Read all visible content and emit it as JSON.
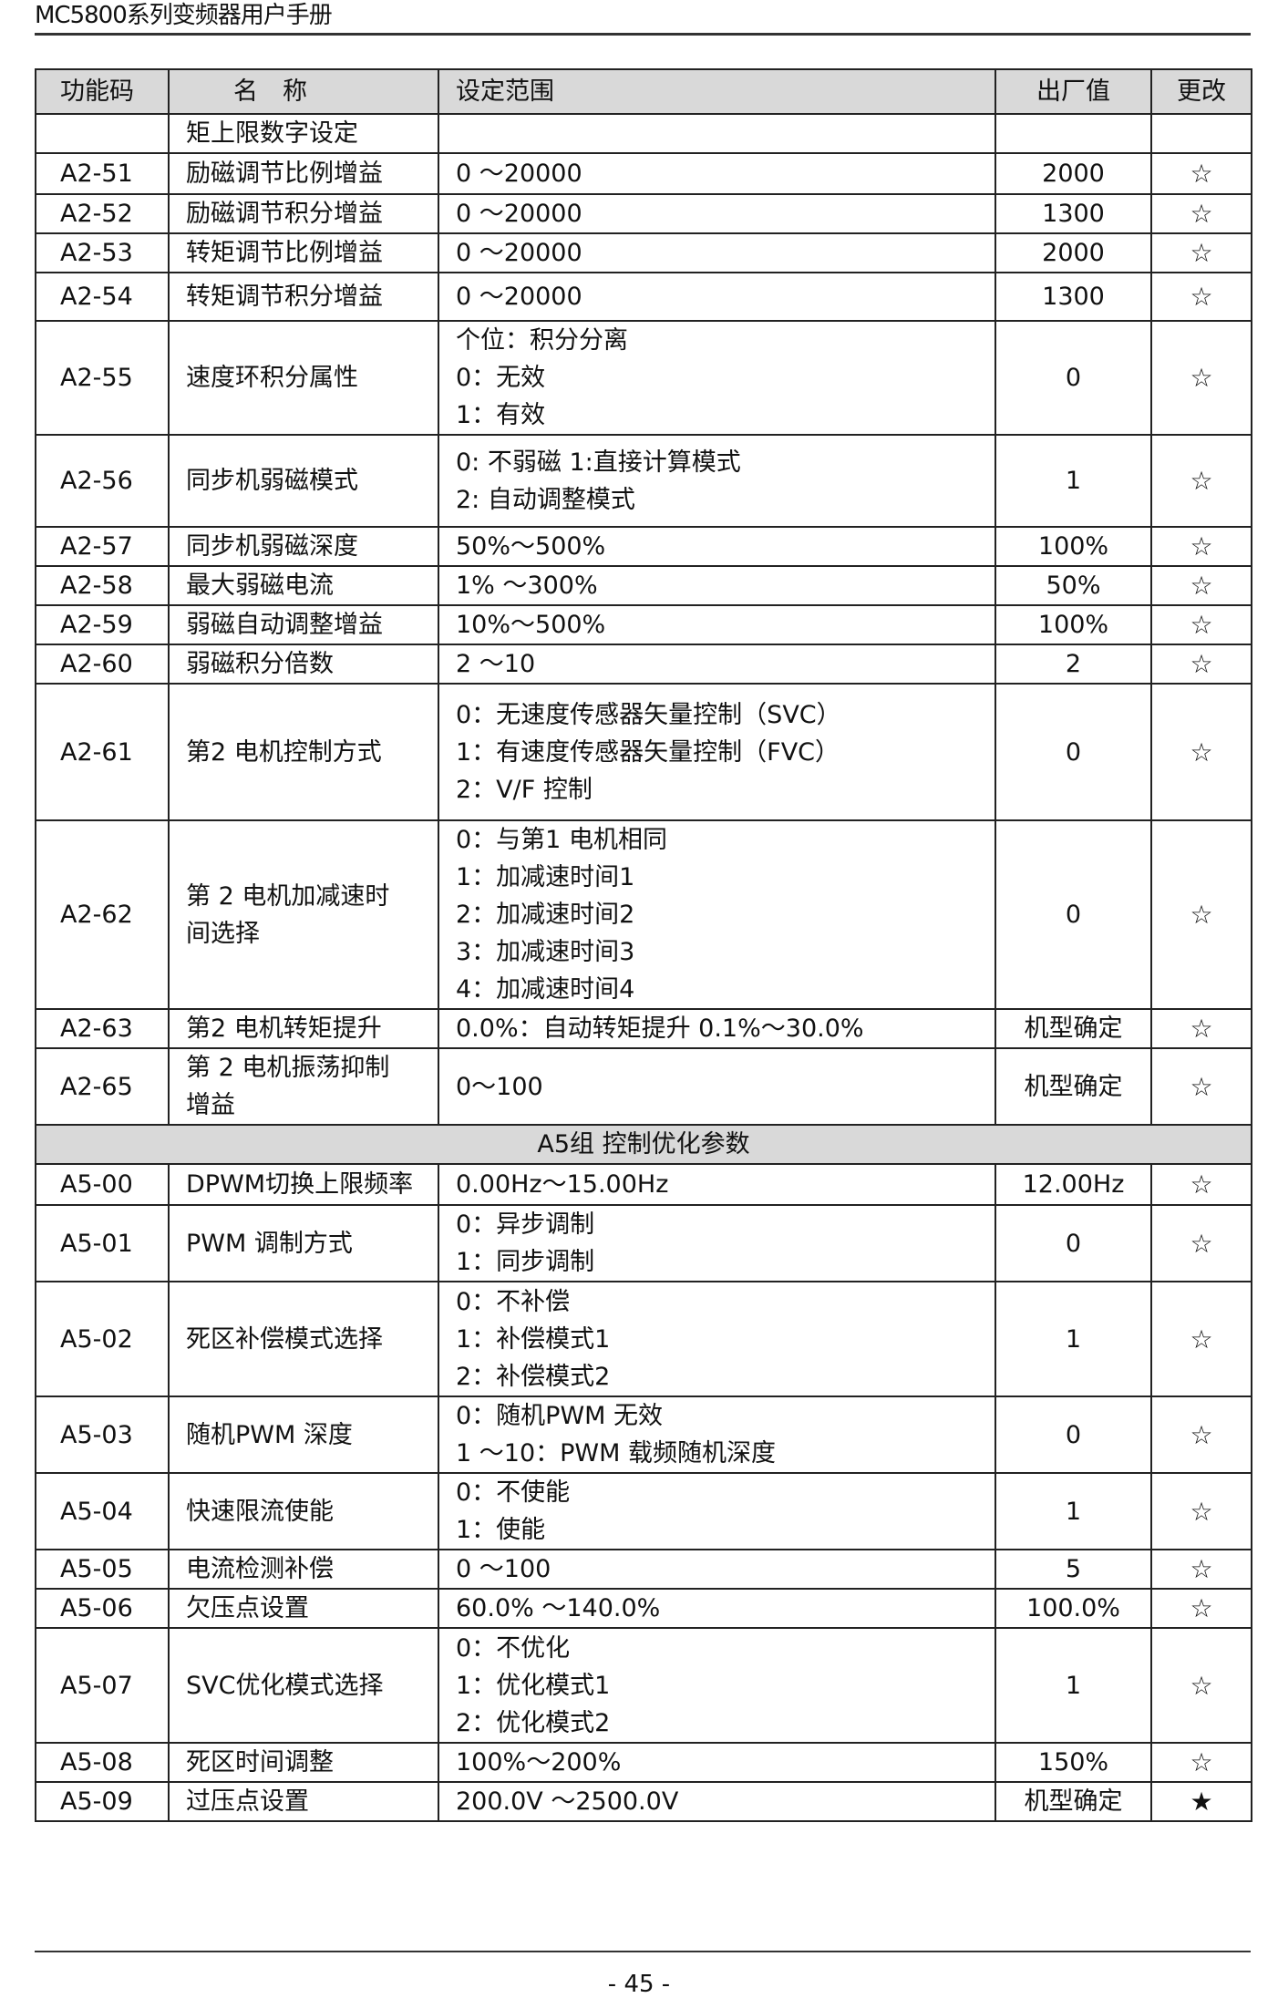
{
  "header": {
    "title": "MC5800系列变频器用户手册"
  },
  "table": {
    "columns": [
      "功能码",
      "名　称",
      "设定范围",
      "出厂值",
      "更改"
    ],
    "rows": [
      {
        "code": "",
        "name": [
          "矩上限数字设定"
        ],
        "range": [
          ""
        ],
        "default": "",
        "change": ""
      },
      {
        "code": "A2-51",
        "name": [
          "励磁调节比例增益"
        ],
        "range": [
          "0 ～20000"
        ],
        "default": "2000",
        "change": "☆"
      },
      {
        "code": "A2-52",
        "name": [
          "励磁调节积分增益"
        ],
        "range": [
          "0 ～20000"
        ],
        "default": "1300",
        "change": "☆"
      },
      {
        "code": "A2-53",
        "name": [
          "转矩调节比例增益"
        ],
        "range": [
          "0 ～20000"
        ],
        "default": "2000",
        "change": "☆"
      },
      {
        "code": "A2-54",
        "name": [
          "转矩调节积分增益"
        ],
        "range": [
          "0 ～20000"
        ],
        "default": "1300",
        "change": "☆"
      },
      {
        "code": "A2-55",
        "name": [
          "速度环积分属性"
        ],
        "range": [
          "个位：积分分离",
          "0：无效",
          "1：有效"
        ],
        "default": "0",
        "change": "☆"
      },
      {
        "code": "A2-56",
        "name": [
          "同步机弱磁模式"
        ],
        "range": [
          "0: 不弱磁  1:直接计算模式",
          "2: 自动调整模式"
        ],
        "default": "1",
        "change": "☆"
      },
      {
        "code": "A2-57",
        "name": [
          "同步机弱磁深度"
        ],
        "range": [
          "50%～500%"
        ],
        "default": "100%",
        "change": "☆"
      },
      {
        "code": "A2-58",
        "name": [
          "最大弱磁电流"
        ],
        "range": [
          "1% ～300%"
        ],
        "default": "50%",
        "change": "☆"
      },
      {
        "code": "A2-59",
        "name": [
          "弱磁自动调整增益"
        ],
        "range": [
          "10%～500%"
        ],
        "default": "100%",
        "change": "☆"
      },
      {
        "code": "A2-60",
        "name": [
          "弱磁积分倍数"
        ],
        "range": [
          "2 ～10"
        ],
        "default": "2",
        "change": "☆"
      },
      {
        "code": "A2-61",
        "name": [
          "第2 电机控制方式"
        ],
        "range": [
          "0：无速度传感器矢量控制（SVC）",
          "1：有速度传感器矢量控制（FVC）",
          "2：V/F 控制"
        ],
        "default": "0",
        "change": "☆"
      },
      {
        "code": "A2-62",
        "name": [
          "第 2 电机加减速时",
          "间选择"
        ],
        "range": [
          "0：与第1 电机相同",
          "1：加减速时间1",
          "2：加减速时间2",
          "3：加减速时间3",
          "4：加减速时间4"
        ],
        "default": "0",
        "change": "☆"
      },
      {
        "code": "A2-63",
        "name": [
          "第2 电机转矩提升"
        ],
        "range": [
          "0.0%：自动转矩提升  0.1%～30.0%"
        ],
        "default": "机型确定",
        "change": "☆"
      },
      {
        "code": "A2-65",
        "name": [
          "第 2 电机振荡抑制",
          "增益"
        ],
        "range": [
          "0～100"
        ],
        "default": "机型确定",
        "change": "☆"
      },
      {
        "group": "A5组 控制优化参数"
      },
      {
        "code": "A5-00",
        "name": [
          "DPWM切换上限频率"
        ],
        "range": [
          "0.00Hz～15.00Hz"
        ],
        "default": "12.00Hz",
        "change": "☆"
      },
      {
        "code": "A5-01",
        "name": [
          "PWM 调制方式"
        ],
        "range": [
          "0：异步调制",
          "1：同步调制"
        ],
        "default": "0",
        "change": "☆"
      },
      {
        "code": "A5-02",
        "name": [
          "死区补偿模式选择"
        ],
        "range": [
          "0：不补偿",
          "1：补偿模式1",
          "2：补偿模式2"
        ],
        "default": "1",
        "change": "☆"
      },
      {
        "code": "A5-03",
        "name": [
          "随机PWM 深度"
        ],
        "range": [
          "0：随机PWM 无效",
          "1 ～10：PWM 载频随机深度"
        ],
        "default": "0",
        "change": "☆"
      },
      {
        "code": "A5-04",
        "name": [
          "快速限流使能"
        ],
        "range": [
          "0：不使能",
          "1：使能"
        ],
        "default": "1",
        "change": "☆"
      },
      {
        "code": "A5-05",
        "name": [
          "电流检测补偿"
        ],
        "range": [
          "0 ～100"
        ],
        "default": "5",
        "change": "☆"
      },
      {
        "code": "A5-06",
        "name": [
          "欠压点设置"
        ],
        "range": [
          "60.0% ～140.0%"
        ],
        "default": "100.0%",
        "change": "☆"
      },
      {
        "code": "A5-07",
        "name": [
          "SVC优化模式选择"
        ],
        "range": [
          "0：不优化",
          "1：优化模式1",
          "2：优化模式2"
        ],
        "default": "1",
        "change": "☆"
      },
      {
        "code": "A5-08",
        "name": [
          "死区时间调整"
        ],
        "range": [
          "100%～200%"
        ],
        "default": "150%",
        "change": "☆"
      },
      {
        "code": "A5-09",
        "name": [
          "过压点设置"
        ],
        "range": [
          "200.0V  ～2500.0V"
        ],
        "default": "机型确定",
        "change": "★"
      }
    ]
  },
  "footer": {
    "page": "- 45 -"
  }
}
